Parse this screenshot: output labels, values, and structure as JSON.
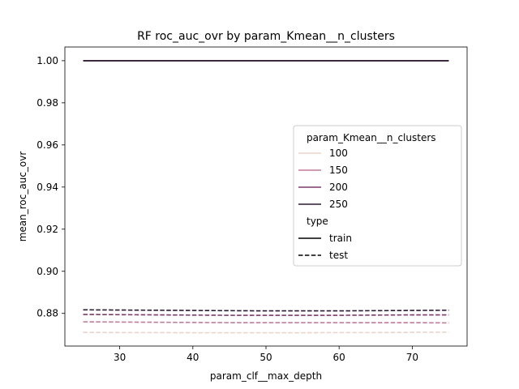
{
  "chart_data": {
    "type": "line",
    "title": "RF roc_auc_ovr by param_Kmean__n_clusters",
    "xlabel": "param_clf__max_depth",
    "ylabel": "mean_roc_auc_ovr",
    "xlim": [
      22.5,
      77.5
    ],
    "ylim": [
      0.8645,
      1.0065
    ],
    "xticks": [
      30,
      40,
      50,
      60,
      70
    ],
    "yticks": [
      0.88,
      0.9,
      0.92,
      0.94,
      0.96,
      0.98,
      1.0
    ],
    "x": [
      25,
      30,
      35,
      40,
      45,
      50,
      55,
      60,
      65,
      70,
      75
    ],
    "grid": false,
    "legend": {
      "position": "center-right",
      "hue_title": "param_Kmean__n_clusters",
      "style_title": "type",
      "hue_entries": [
        {
          "label": "100",
          "color": "#ebd3cb"
        },
        {
          "label": "150",
          "color": "#c07c99"
        },
        {
          "label": "200",
          "color": "#7c3a6a"
        },
        {
          "label": "250",
          "color": "#2b1a34"
        }
      ],
      "style_entries": [
        {
          "label": "train",
          "dash": "solid"
        },
        {
          "label": "test",
          "dash": "dashed"
        }
      ]
    },
    "series": [
      {
        "hue": "100",
        "type": "train",
        "color": "#ebd3cb",
        "dash": "solid",
        "values": [
          1.0,
          1.0,
          1.0,
          1.0,
          1.0,
          1.0,
          1.0,
          1.0,
          1.0,
          1.0,
          1.0
        ]
      },
      {
        "hue": "150",
        "type": "train",
        "color": "#c07c99",
        "dash": "solid",
        "values": [
          1.0,
          1.0,
          1.0,
          1.0,
          1.0,
          1.0,
          1.0,
          1.0,
          1.0,
          1.0,
          1.0
        ]
      },
      {
        "hue": "200",
        "type": "train",
        "color": "#7c3a6a",
        "dash": "solid",
        "values": [
          1.0,
          1.0,
          1.0,
          1.0,
          1.0,
          1.0,
          1.0,
          1.0,
          1.0,
          1.0,
          1.0
        ]
      },
      {
        "hue": "250",
        "type": "train",
        "color": "#2b1a34",
        "dash": "solid",
        "values": [
          1.0,
          1.0,
          1.0,
          1.0,
          1.0,
          1.0,
          1.0,
          1.0,
          1.0,
          1.0,
          1.0
        ]
      },
      {
        "hue": "100",
        "type": "test",
        "color": "#ebd3cb",
        "dash": "dashed",
        "values": [
          0.871,
          0.8709,
          0.8709,
          0.8708,
          0.8708,
          0.8708,
          0.8708,
          0.8709,
          0.8709,
          0.871,
          0.8711
        ]
      },
      {
        "hue": "150",
        "type": "test",
        "color": "#c07c99",
        "dash": "dashed",
        "values": [
          0.876,
          0.8759,
          0.8758,
          0.8757,
          0.8756,
          0.8756,
          0.8756,
          0.8756,
          0.8756,
          0.8756,
          0.8755
        ]
      },
      {
        "hue": "200",
        "type": "test",
        "color": "#7c3a6a",
        "dash": "dashed",
        "values": [
          0.8795,
          0.8794,
          0.8793,
          0.8792,
          0.8791,
          0.8791,
          0.8791,
          0.8791,
          0.8792,
          0.8793,
          0.8793
        ]
      },
      {
        "hue": "250",
        "type": "test",
        "color": "#2b1a34",
        "dash": "dashed",
        "values": [
          0.8817,
          0.8816,
          0.8815,
          0.8814,
          0.8813,
          0.8812,
          0.8812,
          0.8812,
          0.8813,
          0.8814,
          0.8815
        ]
      }
    ]
  }
}
